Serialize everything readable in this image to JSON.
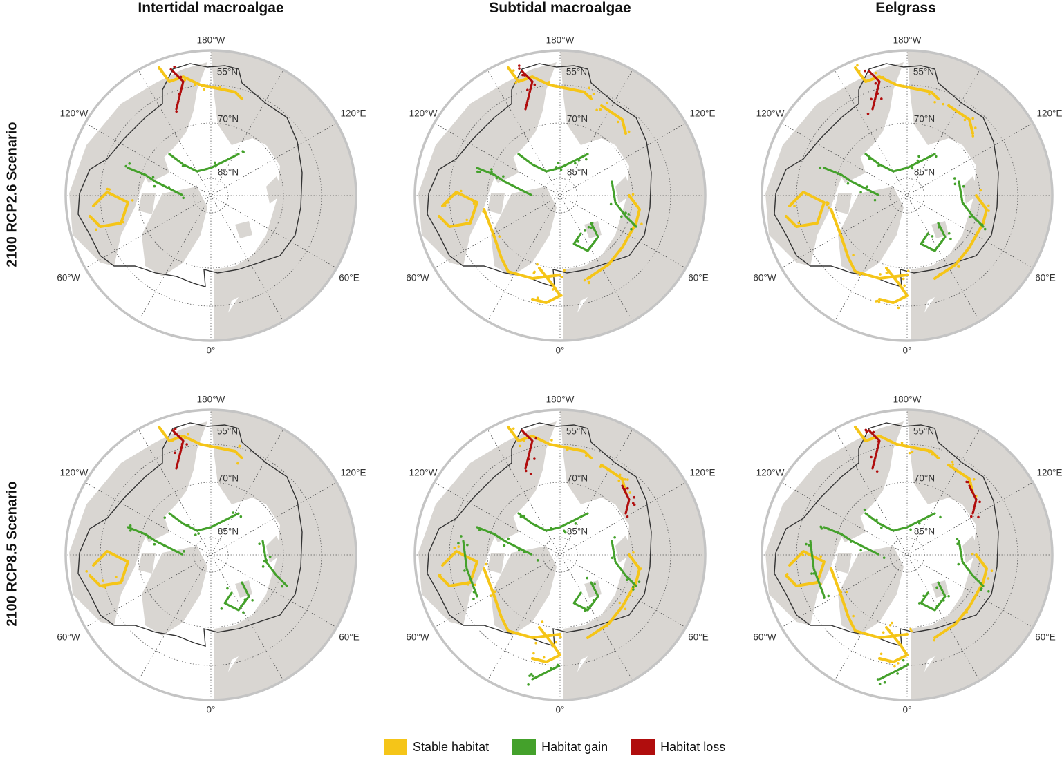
{
  "columns": [
    "Intertidal macroalgae",
    "Subtidal macroalgae",
    "Eelgrass"
  ],
  "rows": [
    "2100 RCP2.6 Scenario",
    "2100 RCP8.5 Scenario"
  ],
  "graticule_labels": {
    "top": "180°W",
    "bottom": "0°",
    "upper_left": "120°W",
    "upper_right": "120°E",
    "lower_left": "60°W",
    "lower_right": "60°E",
    "lat55": "55°N",
    "lat70": "70°N",
    "lat85": "85°N"
  },
  "legend": [
    {
      "label": "Stable habitat",
      "color": "#f5c518"
    },
    {
      "label": "Habitat gain",
      "color": "#44a12b"
    },
    {
      "label": "Habitat loss",
      "color": "#b00d0d"
    }
  ],
  "colors": {
    "land": "#d9d6d2",
    "ocean": "#ffffff",
    "rim": "#c4c4c4",
    "boundary": "#333333"
  },
  "panels": [
    {
      "row": 0,
      "col": 0,
      "stable": "low",
      "gain": "low",
      "loss": "minimal"
    },
    {
      "row": 0,
      "col": 1,
      "stable": "high",
      "gain": "moderate",
      "loss": "minimal"
    },
    {
      "row": 0,
      "col": 2,
      "stable": "high",
      "gain": "moderate",
      "loss": "minimal"
    },
    {
      "row": 1,
      "col": 0,
      "stable": "low",
      "gain": "moderate",
      "loss": "minimal"
    },
    {
      "row": 1,
      "col": 1,
      "stable": "high",
      "gain": "high",
      "loss": "moderate"
    },
    {
      "row": 1,
      "col": 2,
      "stable": "high",
      "gain": "high",
      "loss": "moderate"
    }
  ]
}
